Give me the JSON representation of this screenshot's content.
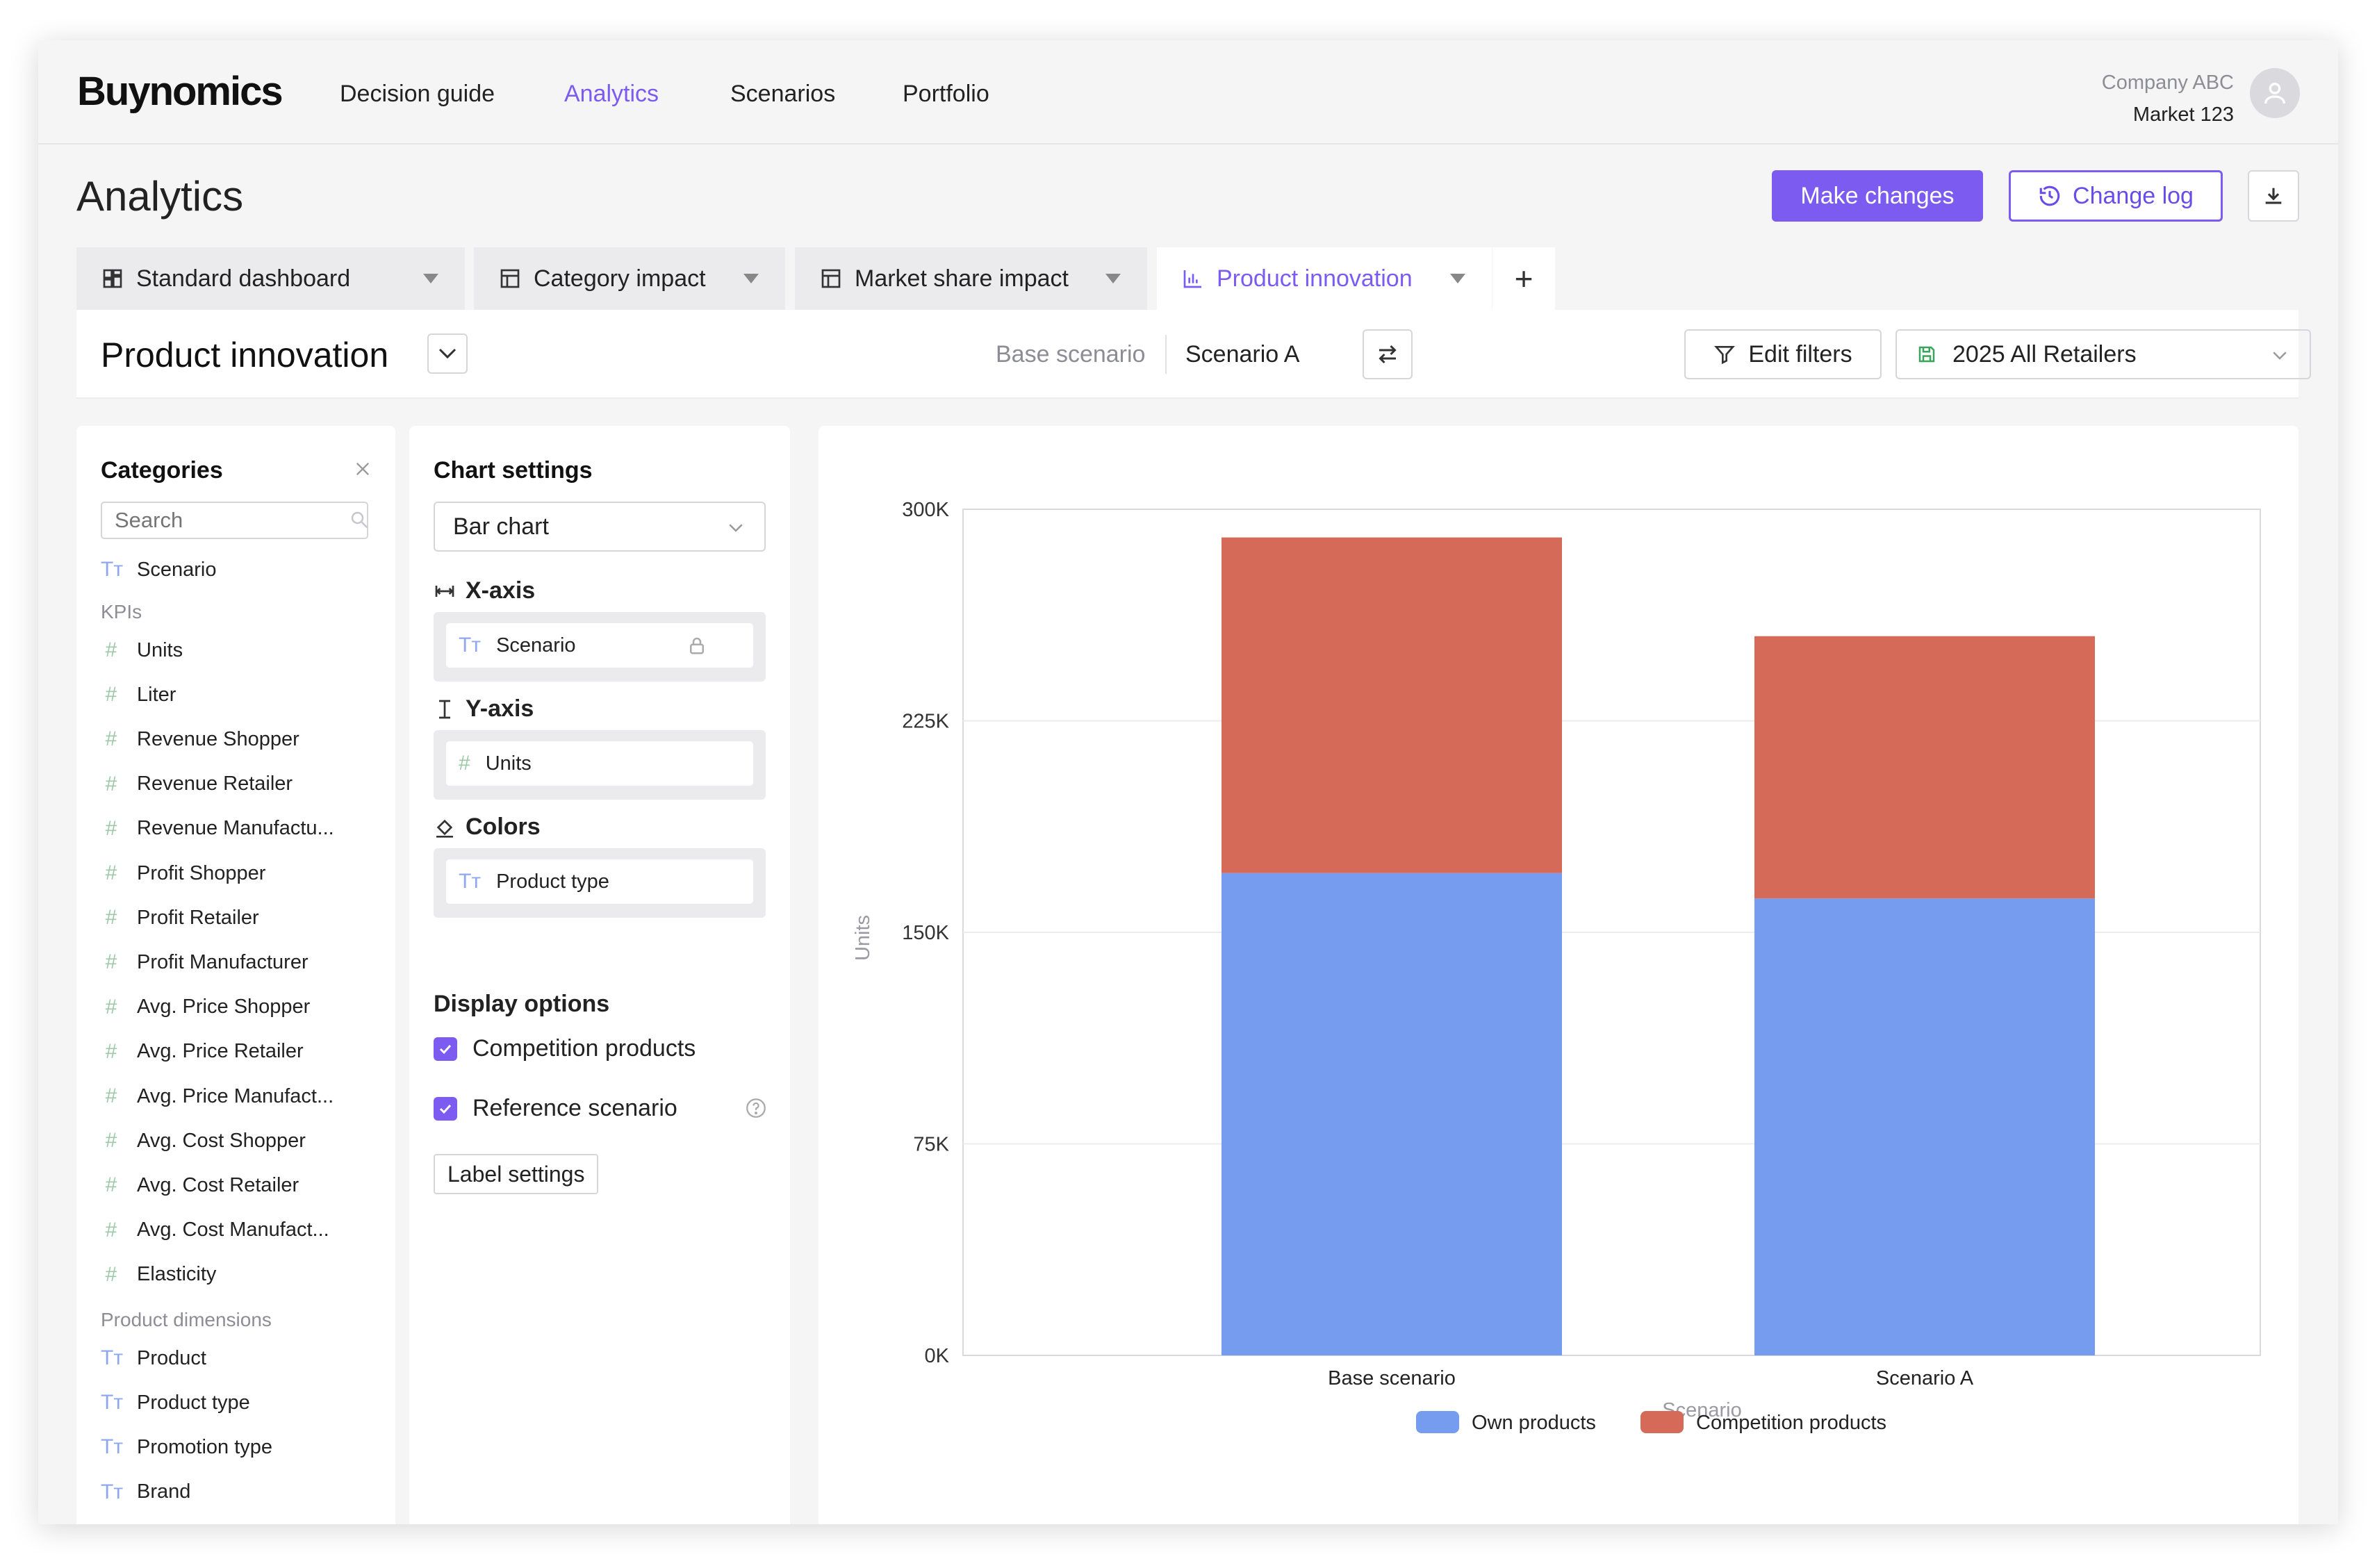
{
  "brand": "Buynomics",
  "nav": {
    "items": [
      "Decision guide",
      "Analytics",
      "Scenarios",
      "Portfolio"
    ],
    "active": "Analytics"
  },
  "account": {
    "company": "Company ABC",
    "market": "Market 123",
    "icon": "user-icon"
  },
  "page": {
    "title": "Analytics",
    "primary_button": "Make changes",
    "secondary_button": "Change log",
    "download_icon": "download-icon"
  },
  "tabs": [
    {
      "label": "Standard dashboard",
      "icon": "dashboard-icon"
    },
    {
      "label": "Category impact",
      "icon": "table-icon"
    },
    {
      "label": "Market share impact",
      "icon": "table-icon"
    },
    {
      "label": "Product innovation",
      "icon": "bar-chart-icon",
      "active": true
    }
  ],
  "add_tab": "+",
  "subheader": {
    "title": "Product innovation",
    "base_scenario": "Base scenario",
    "scenario": "Scenario A",
    "edit_filters": "Edit filters",
    "retailers": "2025 All Retailers"
  },
  "categories": {
    "title": "Categories",
    "search_placeholder": "Search",
    "top_item": "Scenario",
    "kpi_label": "KPIs",
    "kpis": [
      "Units",
      "Liter",
      "Revenue Shopper",
      "Revenue Retailer",
      "Revenue Manufactu...",
      "Profit Shopper",
      "Profit Retailer",
      "Profit Manufacturer",
      "Avg. Price Shopper",
      "Avg. Price Retailer",
      "Avg. Price Manufact...",
      "Avg. Cost Shopper",
      "Avg. Cost Retailer",
      "Avg. Cost Manufact...",
      "Elasticity"
    ],
    "dims_label": "Product dimensions",
    "dims": [
      "Product",
      "Product type",
      "Promotion type",
      "Brand"
    ]
  },
  "settings": {
    "title": "Chart settings",
    "chart_type": "Bar chart",
    "x_axis_label": "X-axis",
    "x_axis_value": "Scenario",
    "y_axis_label": "Y-axis",
    "y_axis_value": "Units",
    "colors_label": "Colors",
    "colors_value": "Product type",
    "display_label": "Display options",
    "opt1": "Competition products",
    "opt1_checked": true,
    "opt2": "Reference scenario",
    "opt2_checked": true,
    "label_settings": "Label settings"
  },
  "colors": {
    "accent": "#7c5bf0",
    "own": "#769cef",
    "competition": "#d56a59"
  },
  "chart_data": {
    "type": "bar",
    "stacked": true,
    "categories": [
      "Base scenario",
      "Scenario A"
    ],
    "series": [
      {
        "name": "Own products",
        "values": [
          171000,
          162000
        ]
      },
      {
        "name": "Competition products",
        "values": [
          119000,
          93000
        ]
      }
    ],
    "xlabel": "Scenario",
    "ylabel": "Units",
    "ylim": [
      0,
      300000
    ],
    "yticks": [
      "0K",
      "75K",
      "150K",
      "225K",
      "300K"
    ],
    "grid": true,
    "legend": "bottom-center"
  }
}
